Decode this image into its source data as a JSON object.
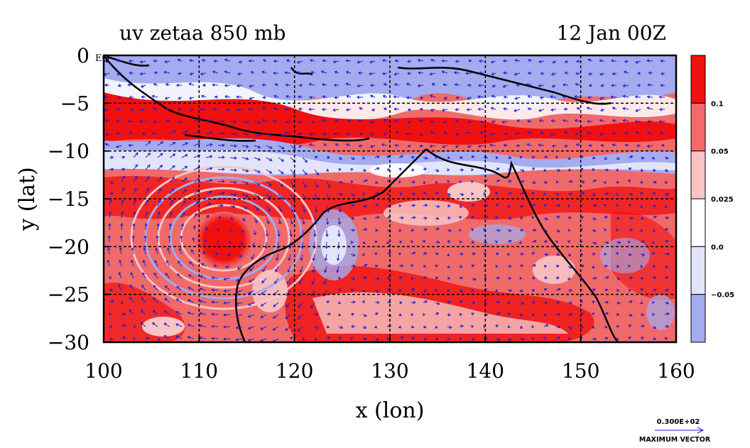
{
  "chart_data": {
    "type": "heatmap",
    "title_left": "uv zetaa 850 mb",
    "title_right": "12 Jan 00Z",
    "xlabel": "x (lon)",
    "ylabel": "y (lat)",
    "xlim": [
      100,
      160
    ],
    "ylim": [
      -30,
      0
    ],
    "x_ticks": [
      "100",
      "110",
      "120",
      "130",
      "140",
      "150",
      "160"
    ],
    "y_ticks": [
      "0",
      "−5",
      "−10",
      "−15",
      "−20",
      "−25",
      "−30"
    ],
    "corner_label": "EQ",
    "grid": true,
    "colorbar": {
      "labels": [
        "0.1",
        "0.05",
        "0.025",
        "0.0",
        "−0.05"
      ],
      "colors": [
        "#f01010",
        "#f06a6a",
        "#f8c4c4",
        "#ffffff",
        "#e2e4fa",
        "#a4abee"
      ]
    },
    "vector_reference": {
      "value": "0.300E+02",
      "caption": "MAXIMUM VECTOR"
    },
    "vortex_center": {
      "lon": 112.5,
      "lat": -19
    }
  }
}
